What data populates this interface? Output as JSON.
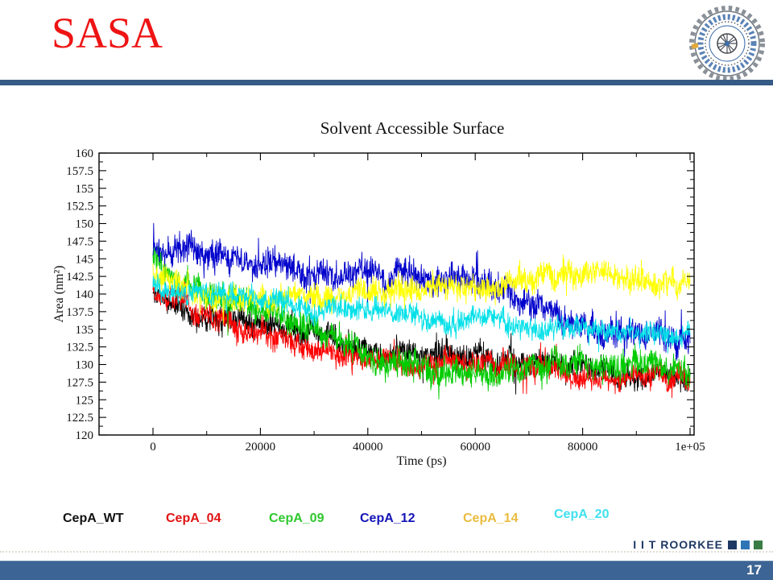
{
  "slide": {
    "title": "SASA"
  },
  "theme": {
    "title_color": "#EE1414",
    "divider_color": "#365B85",
    "bottom_bar_color": "#3C6494",
    "footer_text_color": "#1F3864"
  },
  "chart_data": {
    "type": "line",
    "title": "Solvent Accessible Surface",
    "xlabel": "Time (ps)",
    "ylabel": "Area (nm²)",
    "xlim": [
      0,
      100000
    ],
    "ylim": [
      120,
      160
    ],
    "grid": false,
    "legend_position": "below-slide",
    "x_major_ticks": [
      0,
      20000,
      40000,
      60000,
      80000,
      100000
    ],
    "x_tick_labels": [
      "0",
      "20000",
      "40000",
      "60000",
      "80000",
      "1e+05"
    ],
    "x_minor_step": 10000,
    "y_major_ticks": [
      120,
      122.5,
      125,
      127.5,
      130,
      132.5,
      135,
      137.5,
      140,
      142.5,
      145,
      147.5,
      150,
      152.5,
      155,
      157.5,
      160
    ],
    "y_tick_labels": [
      "120",
      "122.5",
      "125",
      "127.5",
      "130",
      "132.5",
      "135",
      "137.5",
      "140",
      "142.5",
      "145",
      "147.5",
      "150",
      "152.5",
      "155",
      "157.5",
      "160"
    ],
    "y_minor_step": 1.25,
    "series": [
      {
        "name": "CepA_WT",
        "color": "#000000",
        "noise": 2.2,
        "trend": {
          "x": [
            0,
            10000,
            20000,
            30000,
            40000,
            55000,
            70000,
            85000,
            100000
          ],
          "y": [
            140,
            137,
            136,
            134.5,
            132,
            131,
            130,
            129,
            128.5
          ]
        }
      },
      {
        "name": "CepA_04",
        "color": "#FF0000",
        "noise": 2.0,
        "trend": {
          "x": [
            0,
            8000,
            18000,
            30000,
            40000,
            55000,
            70000,
            85000,
            100000
          ],
          "y": [
            141,
            137.5,
            134.5,
            132,
            130.5,
            130.5,
            129.5,
            128,
            127.5
          ]
        }
      },
      {
        "name": "CepA_09",
        "color": "#00CC00",
        "noise": 2.4,
        "trend": {
          "x": [
            0,
            5000,
            15000,
            25000,
            35000,
            45000,
            55000,
            65000,
            75000,
            85000,
            100000
          ],
          "y": [
            145,
            141,
            139,
            137,
            133,
            130,
            128.5,
            129.5,
            130,
            129.5,
            129
          ]
        }
      },
      {
        "name": "CepA_12",
        "color": "#0000CC",
        "noise": 2.5,
        "trend": {
          "x": [
            0,
            8000,
            20000,
            35000,
            50000,
            62000,
            70000,
            80000,
            90000,
            100000
          ],
          "y": [
            146,
            146,
            144,
            143.5,
            142.5,
            142,
            138.5,
            135.5,
            134.5,
            134
          ]
        }
      },
      {
        "name": "CepA_14",
        "color": "#FFFF00",
        "noise": 2.2,
        "trend": {
          "x": [
            0,
            10000,
            25000,
            40000,
            55000,
            65000,
            75000,
            88000,
            95000,
            100000
          ],
          "y": [
            143,
            140,
            139.5,
            140,
            140.5,
            141.5,
            142.5,
            143,
            142,
            141
          ]
        }
      },
      {
        "name": "CepA_20",
        "color": "#00E0E8",
        "noise": 1.8,
        "trend": {
          "x": [
            0,
            10000,
            25000,
            40000,
            55000,
            70000,
            85000,
            100000
          ],
          "y": [
            142,
            139.5,
            138.5,
            137.5,
            136.5,
            135.5,
            135,
            134.5
          ]
        }
      }
    ]
  },
  "legend": {
    "items": [
      {
        "label": "CepA_WT",
        "color": "#111111"
      },
      {
        "label": "CepA_04",
        "color": "#E01212"
      },
      {
        "label": "CepA_09",
        "color": "#2FC82F"
      },
      {
        "label": "CepA_12",
        "color": "#1414B8"
      },
      {
        "label": "CepA_14",
        "color": "#E9BC3F"
      },
      {
        "label": "CepA_20",
        "color": "#3FE0EE"
      }
    ]
  },
  "footer": {
    "brand": "I I T ROORKEE",
    "square_colors": [
      "#1F3864",
      "#2E75B6",
      "#3A7D44"
    ],
    "page_number": "17"
  }
}
